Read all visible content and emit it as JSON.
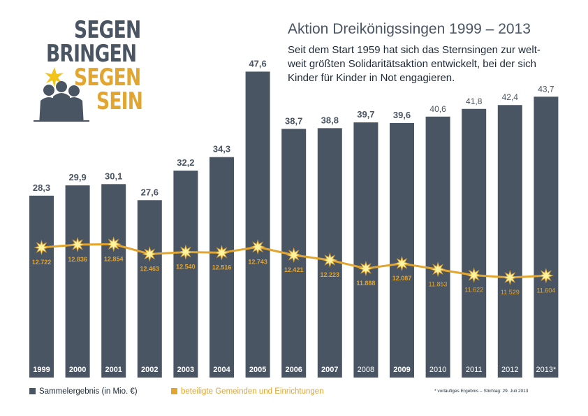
{
  "logo": {
    "lines": [
      "SEGEN",
      "BRINGEN",
      "SEGEN",
      "SEIN"
    ],
    "colors": [
      "#4a5563",
      "#4a5563",
      "#e2a530",
      "#e2a530"
    ]
  },
  "header": {
    "title": "Aktion Dreikönigssingen 1999 – 2013",
    "subtitle_lines": [
      "Seit dem Start 1959 hat sich das Sternsingen zur welt-",
      "weit größten Solidaritätsaktion entwickelt, bei der sich",
      "Kinder für Kinder in Not engagieren."
    ]
  },
  "chart_data": {
    "type": "bar",
    "title": "Aktion Dreikönigssingen 1999 – 2013",
    "categories": [
      "1999",
      "2000",
      "2001",
      "2002",
      "2003",
      "2004",
      "2005",
      "2006",
      "2007",
      "2008",
      "2009",
      "2010",
      "2011",
      "2012",
      "2013*"
    ],
    "series": [
      {
        "name": "Sammelergebnis (in Mio. €)",
        "type": "bar",
        "values": [
          28.3,
          29.9,
          30.1,
          27.6,
          32.2,
          34.3,
          47.6,
          38.7,
          38.8,
          39.7,
          39.6,
          40.6,
          41.8,
          42.4,
          43.7
        ],
        "labels": [
          "28,3",
          "29,9",
          "30,1",
          "27,6",
          "32,2",
          "34,3",
          "47,6",
          "38,7",
          "38,8",
          "39,7",
          "39,6",
          "40,6",
          "41,8",
          "42,4",
          "43,7"
        ]
      },
      {
        "name": "beteiligte Gemeinden und Einrichtungen",
        "type": "line",
        "values": [
          12722,
          12836,
          12854,
          12463,
          12540,
          12516,
          12743,
          12421,
          12223,
          11888,
          12087,
          11853,
          11622,
          11529,
          11604
        ],
        "labels": [
          "12.722",
          "12.836",
          "12.854",
          "12.463",
          "12.540",
          "12.516",
          "12.743",
          "12.421",
          "12.223",
          "11.888",
          "12.087",
          "11.853",
          "11.622",
          "11.529",
          "11.604"
        ]
      }
    ],
    "ylim": [
      0,
      52
    ],
    "line_ylim": [
      9500,
      14500
    ],
    "colors": {
      "bar": "#4a5563",
      "line": "#e2a530",
      "star": "#fff3a0"
    }
  },
  "legend": {
    "bar_label": "Sammelergebnis (in Mio. €)",
    "line_label": "beteiligte Gemeinden und Einrichtungen"
  },
  "footnote": "* vorläufiges Ergebnis – Stichtag: 29. Juli 2013"
}
